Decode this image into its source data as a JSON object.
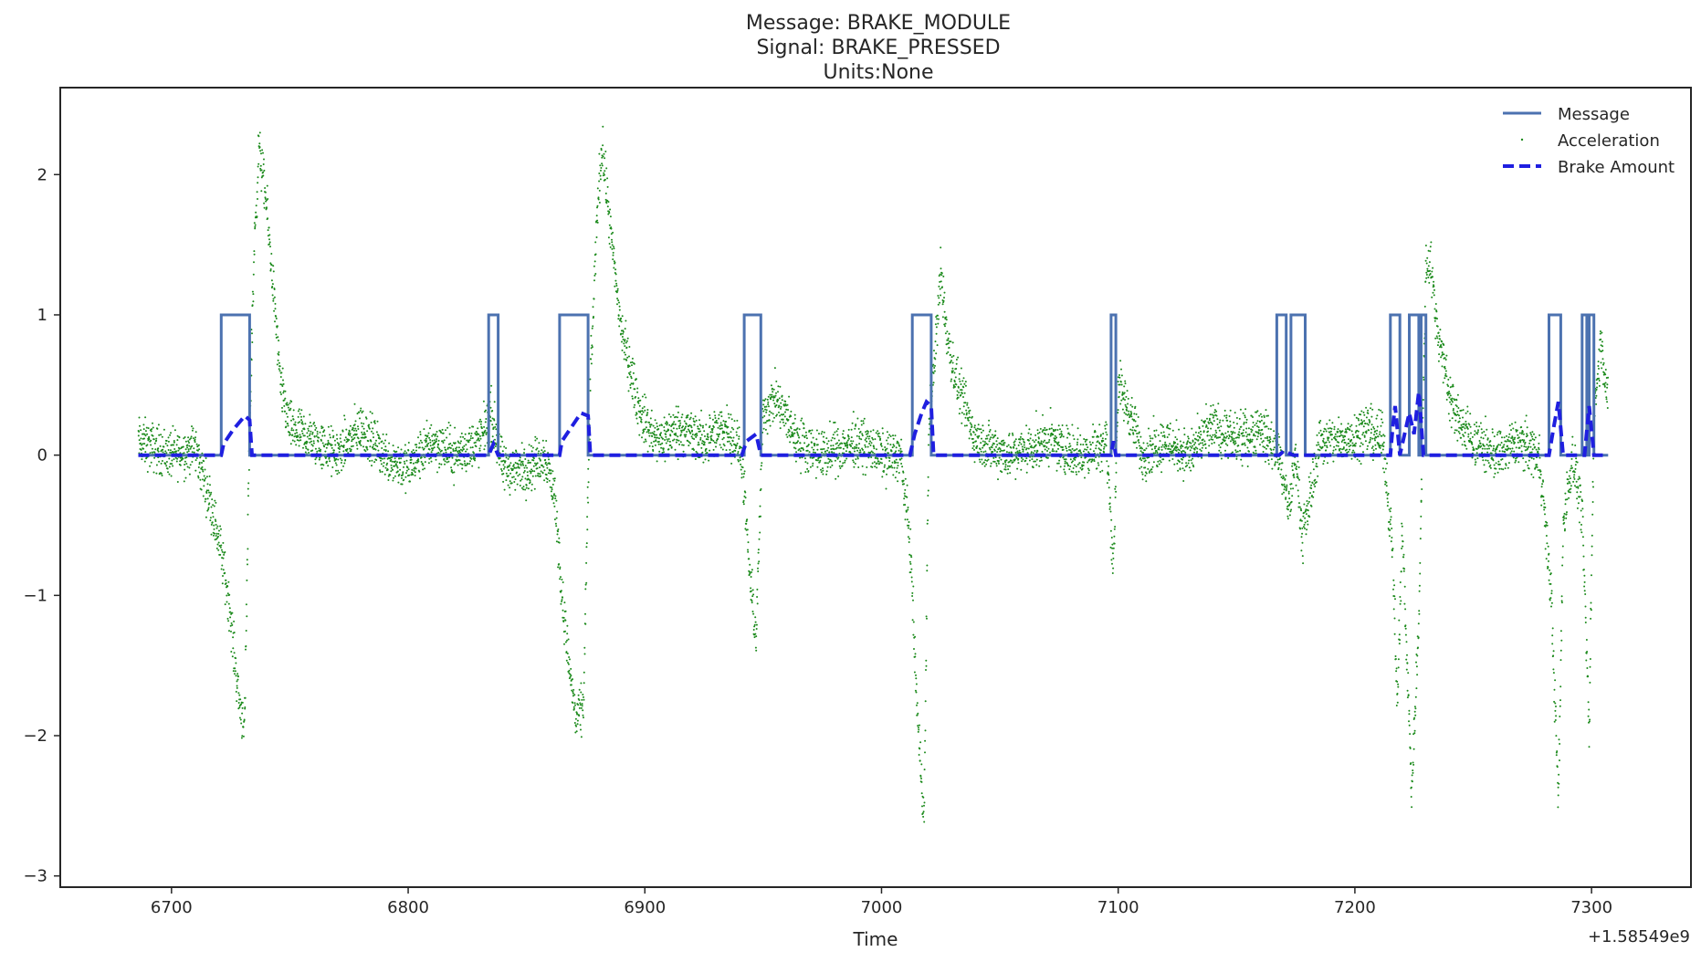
{
  "chart_data": {
    "type": "line",
    "title_lines": [
      "Message: BRAKE_MODULE",
      "Signal: BRAKE_PRESSED",
      "Units:None"
    ],
    "xlabel": "Time",
    "ylabel": "",
    "x_offset_label": "+1.58549e9",
    "xlim": [
      6653,
      7342
    ],
    "ylim": [
      -3.08,
      2.62
    ],
    "x_ticks": [
      6700,
      6800,
      6900,
      7000,
      7100,
      7200,
      7300
    ],
    "x_tick_labels": [
      "6700",
      "6800",
      "6900",
      "7000",
      "7100",
      "7200",
      "7300"
    ],
    "y_ticks": [
      -3,
      -2,
      -1,
      0,
      1,
      2
    ],
    "y_tick_labels": [
      "−3",
      "−2",
      "−1",
      "0",
      "1",
      "2"
    ],
    "grid": false,
    "legend_position": "top-right",
    "series": [
      {
        "name": "Message",
        "style": "solid-line",
        "color": "#4c72b0",
        "steps": [
          [
            6686,
            0
          ],
          [
            6721,
            1
          ],
          [
            6733,
            0
          ],
          [
            6834,
            1
          ],
          [
            6838,
            0
          ],
          [
            6864,
            1
          ],
          [
            6876,
            0
          ],
          [
            6942,
            1
          ],
          [
            6949,
            0
          ],
          [
            7013,
            1
          ],
          [
            7021,
            0
          ],
          [
            7097,
            1
          ],
          [
            7099,
            0
          ],
          [
            7167,
            1
          ],
          [
            7171,
            0
          ],
          [
            7173,
            1
          ],
          [
            7179,
            0
          ],
          [
            7215,
            1
          ],
          [
            7219,
            0
          ],
          [
            7223,
            1
          ],
          [
            7227,
            0
          ],
          [
            7228,
            1
          ],
          [
            7230,
            0
          ],
          [
            7282,
            1
          ],
          [
            7287,
            0
          ],
          [
            7296,
            1
          ],
          [
            7298,
            0
          ],
          [
            7299,
            1
          ],
          [
            7301,
            0
          ],
          [
            7307,
            0
          ]
        ]
      },
      {
        "name": "Acceleration",
        "style": "dots",
        "color": "#1b8a1b",
        "points": [
          [
            6686,
            0.1
          ],
          [
            6700,
            0.0
          ],
          [
            6710,
            0.05
          ],
          [
            6716,
            -0.3
          ],
          [
            6720,
            -0.6
          ],
          [
            6724,
            -1.0
          ],
          [
            6727,
            -1.5
          ],
          [
            6729,
            -1.8
          ],
          [
            6731,
            -1.9
          ],
          [
            6733,
            0.2
          ],
          [
            6735,
            1.5
          ],
          [
            6737,
            2.2
          ],
          [
            6740,
            1.8
          ],
          [
            6743,
            1.2
          ],
          [
            6746,
            0.5
          ],
          [
            6750,
            0.2
          ],
          [
            6760,
            0.1
          ],
          [
            6770,
            0.0
          ],
          [
            6780,
            0.2
          ],
          [
            6790,
            0.0
          ],
          [
            6800,
            -0.1
          ],
          [
            6810,
            0.1
          ],
          [
            6820,
            0.0
          ],
          [
            6830,
            0.1
          ],
          [
            6835,
            0.3
          ],
          [
            6840,
            -0.1
          ],
          [
            6850,
            -0.1
          ],
          [
            6858,
            0.0
          ],
          [
            6862,
            -0.3
          ],
          [
            6865,
            -1.0
          ],
          [
            6868,
            -1.5
          ],
          [
            6871,
            -1.9
          ],
          [
            6874,
            -1.8
          ],
          [
            6877,
            0.5
          ],
          [
            6880,
            1.8
          ],
          [
            6882,
            2.2
          ],
          [
            6886,
            1.5
          ],
          [
            6890,
            0.9
          ],
          [
            6894,
            0.6
          ],
          [
            6898,
            0.3
          ],
          [
            6905,
            0.1
          ],
          [
            6915,
            0.2
          ],
          [
            6925,
            0.1
          ],
          [
            6935,
            0.2
          ],
          [
            6941,
            0.0
          ],
          [
            6944,
            -0.8
          ],
          [
            6947,
            -1.3
          ],
          [
            6950,
            0.3
          ],
          [
            6955,
            0.4
          ],
          [
            6965,
            0.1
          ],
          [
            6975,
            0.0
          ],
          [
            6990,
            0.1
          ],
          [
            7000,
            0.0
          ],
          [
            7008,
            0.0
          ],
          [
            7012,
            -0.6
          ],
          [
            7015,
            -1.8
          ],
          [
            7018,
            -2.6
          ],
          [
            7020,
            0.2
          ],
          [
            7023,
            0.8
          ],
          [
            7025,
            1.3
          ],
          [
            7028,
            0.8
          ],
          [
            7032,
            0.5
          ],
          [
            7040,
            0.1
          ],
          [
            7055,
            0.0
          ],
          [
            7070,
            0.1
          ],
          [
            7085,
            0.0
          ],
          [
            7095,
            0.1
          ],
          [
            7098,
            -0.8
          ],
          [
            7100,
            0.5
          ],
          [
            7105,
            0.3
          ],
          [
            7110,
            0.0
          ],
          [
            7120,
            0.1
          ],
          [
            7130,
            0.0
          ],
          [
            7140,
            0.2
          ],
          [
            7150,
            0.1
          ],
          [
            7160,
            0.2
          ],
          [
            7168,
            0.0
          ],
          [
            7172,
            -0.4
          ],
          [
            7175,
            0.0
          ],
          [
            7178,
            -0.6
          ],
          [
            7185,
            0.1
          ],
          [
            7195,
            0.1
          ],
          [
            7205,
            0.2
          ],
          [
            7212,
            0.1
          ],
          [
            7216,
            -0.7
          ],
          [
            7218,
            -1.8
          ],
          [
            7220,
            -0.5
          ],
          [
            7224,
            -2.4
          ],
          [
            7227,
            -1.2
          ],
          [
            7230,
            1.3
          ],
          [
            7232,
            1.4
          ],
          [
            7234,
            1.0
          ],
          [
            7237,
            0.7
          ],
          [
            7242,
            0.3
          ],
          [
            7250,
            0.1
          ],
          [
            7260,
            0.0
          ],
          [
            7270,
            0.1
          ],
          [
            7278,
            0.0
          ],
          [
            7283,
            -1.0
          ],
          [
            7286,
            -2.5
          ],
          [
            7288,
            -0.5
          ],
          [
            7292,
            0.0
          ],
          [
            7296,
            -0.4
          ],
          [
            7299,
            -2.0
          ],
          [
            7301,
            0.3
          ],
          [
            7304,
            0.8
          ],
          [
            7307,
            0.4
          ]
        ]
      },
      {
        "name": "Brake Amount",
        "style": "dashed-line",
        "color": "#1f1fe0",
        "points": [
          [
            6686,
            0
          ],
          [
            6721,
            0
          ],
          [
            6722,
            0.08
          ],
          [
            6726,
            0.18
          ],
          [
            6731,
            0.28
          ],
          [
            6733,
            0.25
          ],
          [
            6734,
            0
          ],
          [
            6834,
            0
          ],
          [
            6836,
            0.08
          ],
          [
            6838,
            0
          ],
          [
            6864,
            0
          ],
          [
            6865,
            0.1
          ],
          [
            6869,
            0.2
          ],
          [
            6873,
            0.3
          ],
          [
            6876,
            0.28
          ],
          [
            6877,
            0
          ],
          [
            6941,
            0
          ],
          [
            6943,
            0.1
          ],
          [
            6947,
            0.15
          ],
          [
            6949,
            0
          ],
          [
            7012,
            0
          ],
          [
            7014,
            0.15
          ],
          [
            7017,
            0.3
          ],
          [
            7019,
            0.38
          ],
          [
            7021,
            0.35
          ],
          [
            7022,
            0
          ],
          [
            7097,
            0
          ],
          [
            7098,
            0.1
          ],
          [
            7099,
            0
          ],
          [
            7168,
            0
          ],
          [
            7170,
            0.03
          ],
          [
            7174,
            0
          ],
          [
            7215,
            0
          ],
          [
            7216,
            0.2
          ],
          [
            7217,
            0.35
          ],
          [
            7219,
            0
          ],
          [
            7223,
            0.3
          ],
          [
            7225,
            0.15
          ],
          [
            7227,
            0.45
          ],
          [
            7229,
            0
          ],
          [
            7282,
            0
          ],
          [
            7284,
            0.2
          ],
          [
            7286,
            0.38
          ],
          [
            7288,
            0
          ],
          [
            7297,
            0
          ],
          [
            7299,
            0.35
          ],
          [
            7301,
            0
          ],
          [
            7307,
            0
          ]
        ]
      }
    ]
  }
}
